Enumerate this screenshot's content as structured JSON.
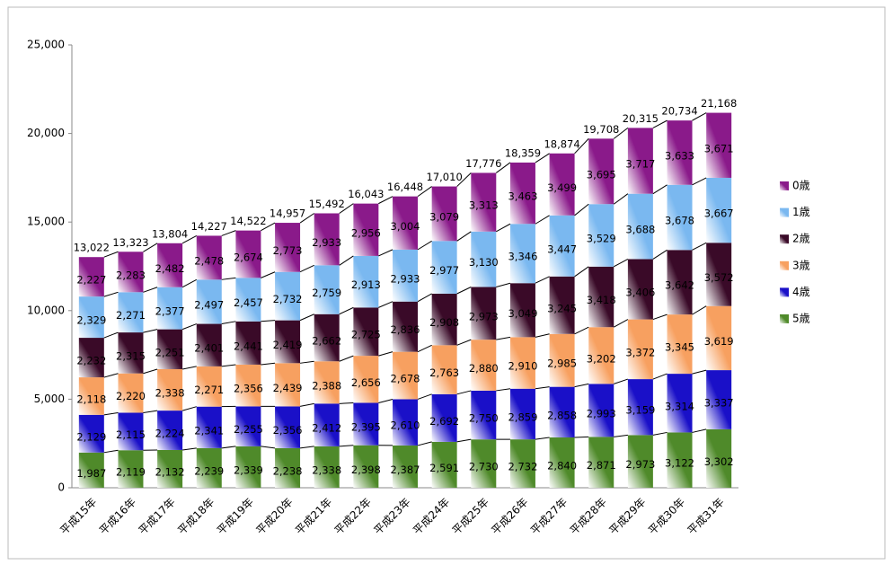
{
  "chart_data": {
    "type": "stacked_bar",
    "categories": [
      "平成15年",
      "平成16年",
      "平成17年",
      "平成18年",
      "平成19年",
      "平成20年",
      "平成21年",
      "平成22年",
      "平成23年",
      "平成24年",
      "平成25年",
      "平成26年",
      "平成27年",
      "平成28年",
      "平成29年",
      "平成30年",
      "平成31年"
    ],
    "series": [
      {
        "name": "5歳",
        "color": "#4f8a2a",
        "values": [
          1987,
          2119,
          2132,
          2239,
          2339,
          2238,
          2338,
          2398,
          2387,
          2591,
          2730,
          2732,
          2840,
          2871,
          2973,
          3122,
          3302
        ],
        "value_labels": [
          "1,987",
          "2,119",
          "2,132",
          "2,239",
          "2,339",
          "2,238",
          "2,338",
          "2,398",
          "2,387",
          "2,591",
          "2,730",
          "2,732",
          "2,840",
          "2,871",
          "2,973",
          "3,122",
          "3,302"
        ]
      },
      {
        "name": "4歳",
        "color": "#1a10c8",
        "values": [
          2129,
          2115,
          2224,
          2341,
          2255,
          2356,
          2412,
          2395,
          2610,
          2692,
          2750,
          2859,
          2858,
          2993,
          3159,
          3314,
          3337
        ],
        "value_labels": [
          "2,129",
          "2,115",
          "2,224",
          "2,341",
          "2,255",
          "2,356",
          "2,412",
          "2,395",
          "2,610",
          "2,692",
          "2,750",
          "2,859",
          "2,858",
          "2,993",
          "3,159",
          "3,314",
          "3,337"
        ]
      },
      {
        "name": "3歳",
        "color": "#f7a060",
        "values": [
          2118,
          2220,
          2338,
          2271,
          2356,
          2439,
          2388,
          2656,
          2678,
          2763,
          2880,
          2910,
          2985,
          3202,
          3372,
          3345,
          3619
        ],
        "value_labels": [
          "2,118",
          "2,220",
          "2,338",
          "2,271",
          "2,356",
          "2,439",
          "2,388",
          "2,656",
          "2,678",
          "2,763",
          "2,880",
          "2,910",
          "2,985",
          "3,202",
          "3,372",
          "3,345",
          "3,619"
        ]
      },
      {
        "name": "2歳",
        "color": "#3a0a28",
        "values": [
          2232,
          2315,
          2251,
          2401,
          2441,
          2419,
          2662,
          2725,
          2836,
          2908,
          2973,
          3049,
          3245,
          3418,
          3406,
          3642,
          3572
        ],
        "value_labels": [
          "2,232",
          "2,315",
          "2,251",
          "2,401",
          "2,441",
          "2,419",
          "2,662",
          "2,725",
          "2,836",
          "2,908",
          "2,973",
          "3,049",
          "3,245",
          "3,418",
          "3,406",
          "3,642",
          "3,572"
        ]
      },
      {
        "name": "1歳",
        "color": "#7ab8f0",
        "values": [
          2329,
          2271,
          2377,
          2497,
          2457,
          2732,
          2759,
          2913,
          2933,
          2977,
          3130,
          3346,
          3447,
          3529,
          3688,
          3678,
          3667
        ],
        "value_labels": [
          "2,329",
          "2,271",
          "2,377",
          "2,497",
          "2,457",
          "2,732",
          "2,759",
          "2,913",
          "2,933",
          "2,977",
          "3,130",
          "3,346",
          "3,447",
          "3,529",
          "3,688",
          "3,678",
          "3,667"
        ]
      },
      {
        "name": "0歳",
        "color": "#8a1a8a",
        "values": [
          2227,
          2283,
          2482,
          2478,
          2674,
          2773,
          2933,
          2956,
          3004,
          3079,
          3313,
          3463,
          3499,
          3695,
          3717,
          3633,
          3671
        ],
        "value_labels": [
          "2,227",
          "2,283",
          "2,482",
          "2,478",
          "2,674",
          "2,773",
          "2,933",
          "2,956",
          "3,004",
          "3,079",
          "3,313",
          "3,463",
          "3,499",
          "3,695",
          "3,717",
          "3,633",
          "3,671"
        ]
      }
    ],
    "totals": [
      13022,
      13323,
      13804,
      14227,
      14522,
      14957,
      15492,
      16043,
      16448,
      17010,
      17776,
      18359,
      18874,
      19708,
      20315,
      20734,
      21168
    ],
    "total_labels": [
      "13,022",
      "13,323",
      "13,804",
      "14,227",
      "14,522",
      "14,957",
      "15,492",
      "16,043",
      "16,448",
      "17,010",
      "17,776",
      "18,359",
      "18,874",
      "19,708",
      "20,315",
      "20,734",
      "21,168"
    ],
    "ylim": [
      0,
      25000
    ],
    "yticks": [
      0,
      {
        "value": 5000,
        "label": "5,000"
      },
      {
        "value": 10000,
        "label": "10,000"
      },
      {
        "value": 15000,
        "label": "15,000"
      },
      {
        "value": 20000,
        "label": "20,000"
      },
      {
        "value": 25000,
        "label": "25,000"
      }
    ],
    "legend": "right"
  }
}
